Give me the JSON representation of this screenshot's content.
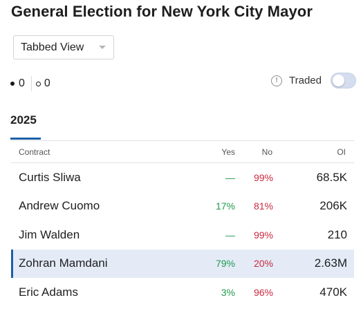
{
  "title": "General Election for New York City Mayor",
  "view_select": {
    "value": "Tabbed View"
  },
  "counts": {
    "filled": "0",
    "hollow": "0"
  },
  "traded": {
    "label": "Traded",
    "info_icon": "info-circle-icon",
    "toggle_on": false
  },
  "tabs": [
    {
      "label": "2025",
      "active": true
    }
  ],
  "table": {
    "headers": {
      "contract": "Contract",
      "yes": "Yes",
      "no": "No",
      "oi": "OI"
    },
    "rows": [
      {
        "name": "Curtis Sliwa",
        "yes": "—",
        "no": "99%",
        "oi": "68.5K",
        "selected": false
      },
      {
        "name": "Andrew Cuomo",
        "yes": "17%",
        "no": "81%",
        "oi": "206K",
        "selected": false
      },
      {
        "name": "Jim Walden",
        "yes": "—",
        "no": "99%",
        "oi": "210",
        "selected": false
      },
      {
        "name": "Zohran Mamdani",
        "yes": "79%",
        "no": "20%",
        "oi": "2.63M",
        "selected": true
      },
      {
        "name": "Eric Adams",
        "yes": "3%",
        "no": "96%",
        "oi": "470K",
        "selected": false
      }
    ]
  },
  "colors": {
    "accent": "#1d5fa8",
    "yes": "#1f9a4c",
    "no": "#c9283e",
    "selected_row": "#e4ebf7"
  }
}
